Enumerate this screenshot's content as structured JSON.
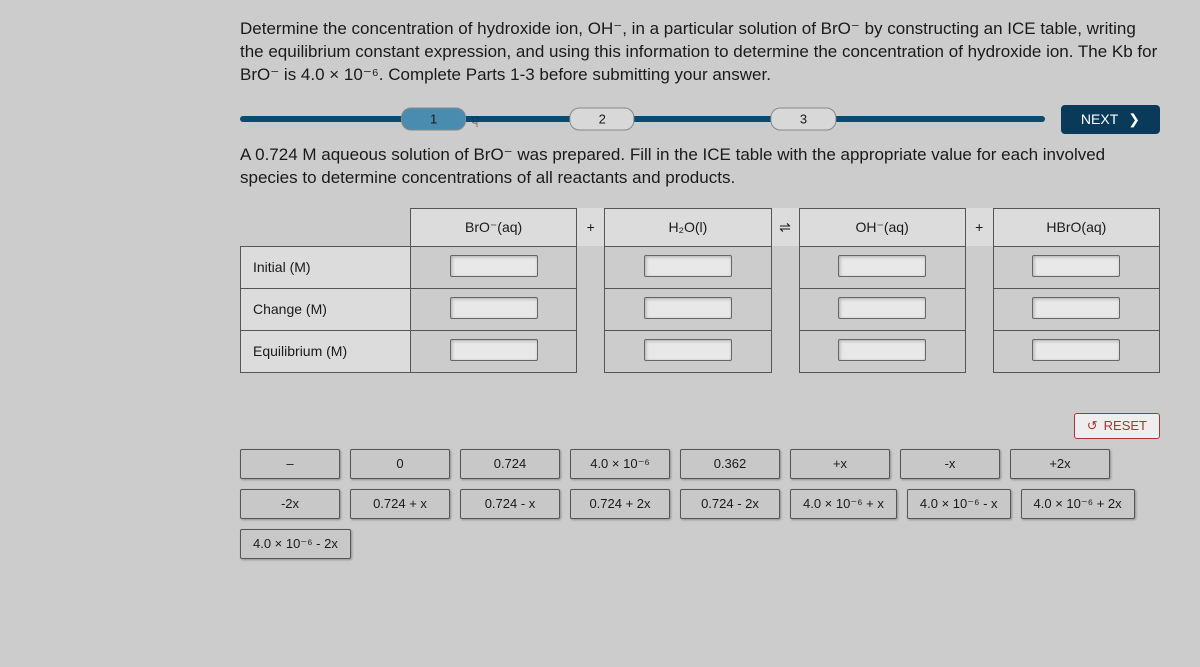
{
  "question": "Determine the concentration of hydroxide ion, OH⁻, in a particular solution of BrO⁻ by constructing an ICE table, writing the equilibrium constant expression, and using this information to determine the concentration of hydroxide ion. The Kb for BrO⁻ is 4.0 × 10⁻⁶. Complete Parts 1-3 before submitting your answer.",
  "steps": {
    "s1": "1",
    "s2": "2",
    "s3": "3"
  },
  "next_label": "NEXT",
  "next_chevron": "❯",
  "subprompt": "A 0.724 M aqueous solution of BrO⁻ was prepared. Fill in the ICE table with the appropriate value for each involved species to determine concentrations of all reactants and products.",
  "table": {
    "cols": {
      "c1": "BrO⁻(aq)",
      "op1": "+",
      "c2": "H₂O(l)",
      "op2": "⇌",
      "c3": "OH⁻(aq)",
      "op3": "+",
      "c4": "HBrO(aq)"
    },
    "rows": {
      "r1": "Initial (M)",
      "r2": "Change (M)",
      "r3": "Equilibrium (M)"
    }
  },
  "reset_label": "RESET",
  "tiles": {
    "t0": "–",
    "t1": "0",
    "t2": "0.724",
    "t3": "4.0 × 10⁻⁶",
    "t4": "0.362",
    "t5": "+x",
    "t6": "-x",
    "t7": "+2x",
    "t8": "-2x",
    "t9": "0.724 + x",
    "t10": "0.724 - x",
    "t11": "0.724 + 2x",
    "t12": "0.724 - 2x",
    "t13": "4.0 × 10⁻⁶ + x",
    "t14": "4.0 × 10⁻⁶ - x",
    "t15": "4.0 × 10⁻⁶ + 2x",
    "t16": "4.0 × 10⁻⁶ - 2x"
  },
  "colors": {
    "bg": "#cccccc",
    "track": "#0a4a6e",
    "active_pill": "#4a8cb0",
    "inactive_pill": "#d8d8d8",
    "next_bg": "#0a3a5a",
    "tile_bg": "#c8c8c8",
    "reset_color": "#a33"
  }
}
